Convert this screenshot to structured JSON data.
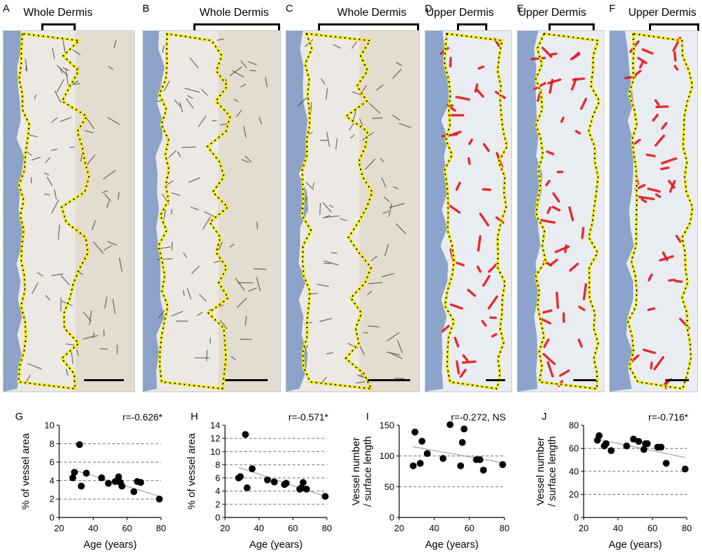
{
  "micro_panels": [
    {
      "letter": "A",
      "title": "Whole Dermis",
      "stain": "brown"
    },
    {
      "letter": "B",
      "title": "Whole Dermis",
      "stain": "brown"
    },
    {
      "letter": "C",
      "title": "Whole Dermis",
      "stain": "brown"
    },
    {
      "letter": "D",
      "title": "Upper Dermis",
      "stain": "red"
    },
    {
      "letter": "E",
      "title": "Upper Dermis",
      "stain": "red"
    },
    {
      "letter": "F",
      "title": "Upper Dermis",
      "stain": "red"
    }
  ],
  "colors": {
    "region_outline": "#f2ea22",
    "dot_fill": "#000000",
    "trend_line": "#a0a0a0",
    "grid_line": "#6e6e6e",
    "epidermis": "#7b95c4",
    "dermis": "#dfe5ec",
    "stain_brown": "#4a3728",
    "stain_red": "#e3181f"
  },
  "chart_data": [
    {
      "letter": "G",
      "type": "scatter",
      "stat": "r=-0.626*",
      "xlabel": "Age (years)",
      "ylabel": [
        "% of vessel area"
      ],
      "xlim": [
        20,
        80
      ],
      "ylim": [
        0,
        10
      ],
      "xticks": [
        20,
        40,
        60,
        80
      ],
      "yticks": [
        0,
        2,
        4,
        6,
        8,
        10
      ],
      "grid": "horizontal dashed",
      "x": [
        28,
        29,
        32,
        33,
        36,
        45,
        49,
        53,
        55,
        56,
        57,
        64,
        66,
        68,
        79
      ],
      "y": [
        4.3,
        4.9,
        7.9,
        3.4,
        4.8,
        4.3,
        3.7,
        3.9,
        4.4,
        3.8,
        3.4,
        2.8,
        3.9,
        3.8,
        2.0
      ],
      "trend": {
        "x": [
          28,
          79
        ],
        "y": [
          5.2,
          2.3
        ]
      }
    },
    {
      "letter": "H",
      "type": "scatter",
      "stat": "r=-0.571*",
      "xlabel": "Age (years)",
      "ylabel": [
        "% of vessel area"
      ],
      "xlim": [
        20,
        80
      ],
      "ylim": [
        0,
        14
      ],
      "xticks": [
        20,
        40,
        60,
        80
      ],
      "yticks": [
        0,
        2,
        4,
        6,
        8,
        10,
        12,
        14
      ],
      "grid": "horizontal dashed",
      "x": [
        28,
        29,
        32,
        33,
        36,
        45,
        49,
        55,
        56,
        64,
        65,
        66,
        68,
        79
      ],
      "y": [
        6.0,
        6.2,
        12.6,
        4.5,
        7.4,
        5.7,
        5.4,
        5.0,
        5.2,
        4.3,
        4.5,
        5.3,
        4.3,
        3.2
      ],
      "trend": {
        "x": [
          28,
          79
        ],
        "y": [
          7.6,
          3.2
        ]
      }
    },
    {
      "letter": "I",
      "type": "scatter",
      "stat": "r=-0.272, NS",
      "xlabel": "Age (years)",
      "ylabel": [
        "Vessel number",
        "/ surface length"
      ],
      "xlim": [
        20,
        80
      ],
      "ylim": [
        0,
        150
      ],
      "xticks": [
        20,
        40,
        60,
        80
      ],
      "yticks": [
        0,
        50,
        100,
        150
      ],
      "grid": "horizontal dashed",
      "x": [
        28,
        29,
        32,
        33,
        36,
        45,
        49,
        55,
        56,
        57,
        64,
        66,
        68,
        79
      ],
      "y": [
        84,
        139,
        88,
        124,
        104,
        96,
        151,
        84,
        122,
        144,
        94,
        94,
        77,
        86
      ],
      "trend": {
        "x": [
          28,
          79
        ],
        "y": [
          115,
          89
        ]
      }
    },
    {
      "letter": "J",
      "type": "scatter",
      "stat": "r=-0.716*",
      "xlabel": "Age (years)",
      "ylabel": [
        "Vessel number",
        "/ surface length"
      ],
      "xlim": [
        20,
        80
      ],
      "ylim": [
        0,
        80
      ],
      "xticks": [
        20,
        40,
        60,
        80
      ],
      "yticks": [
        0,
        20,
        40,
        60,
        80
      ],
      "grid": "horizontal dashed",
      "x": [
        28,
        29,
        32,
        33,
        36,
        45,
        49,
        52,
        55,
        56,
        57,
        63,
        65,
        68,
        79
      ],
      "y": [
        67,
        71,
        62,
        64,
        58,
        62,
        68,
        66,
        59,
        64,
        64,
        61,
        61,
        47,
        42
      ],
      "trend": {
        "x": [
          28,
          79
        ],
        "y": [
          68,
          52
        ]
      }
    }
  ]
}
